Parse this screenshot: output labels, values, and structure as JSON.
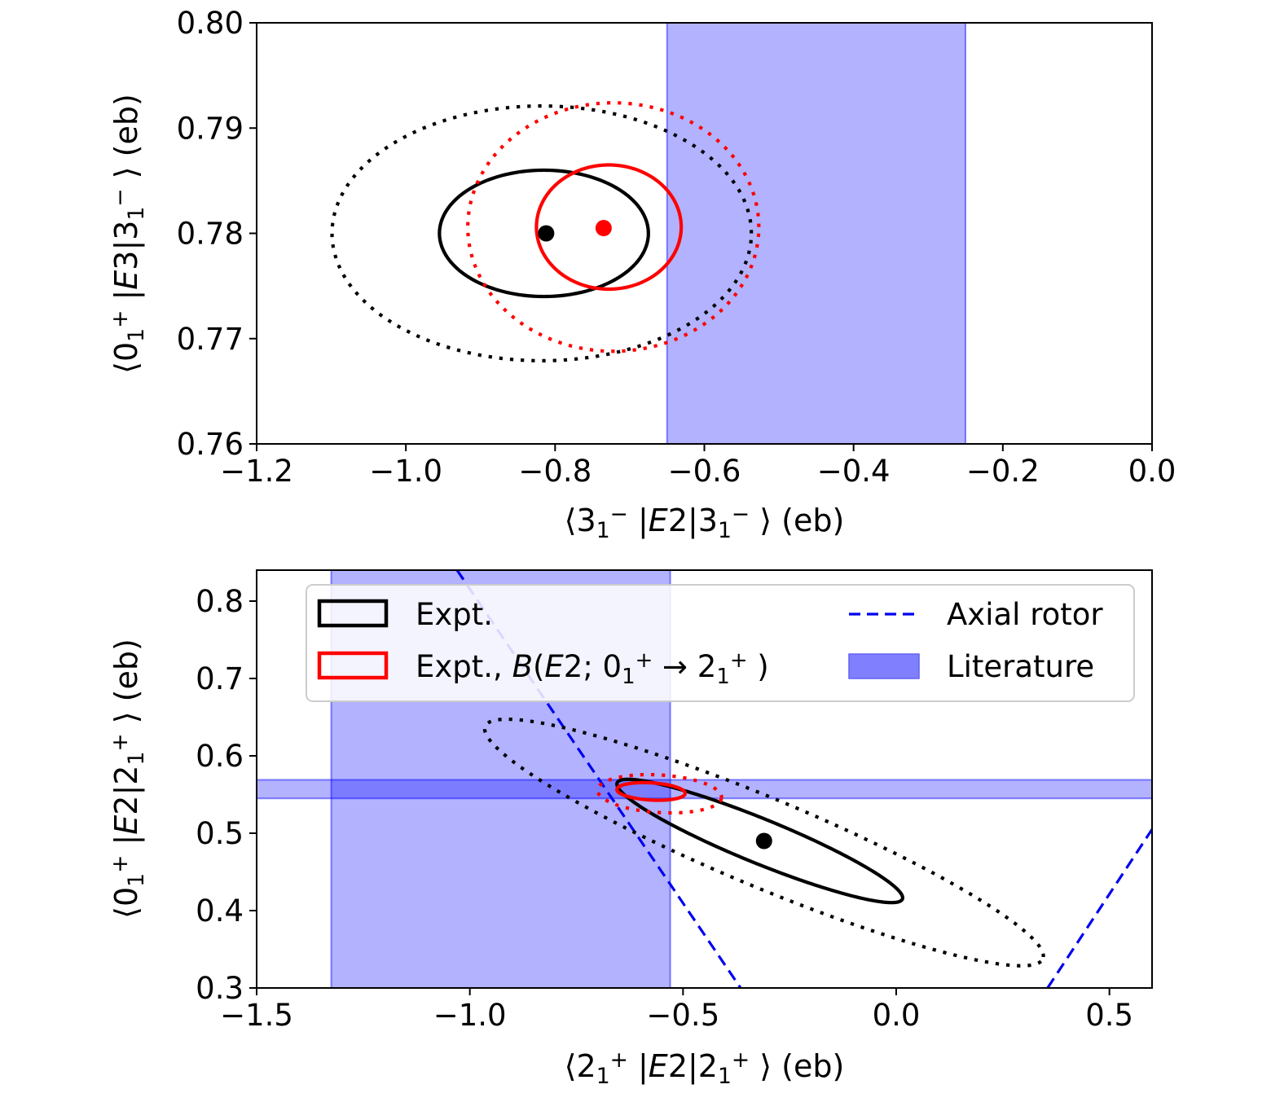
{
  "chart_data": [
    {
      "type": "scatter",
      "panel": "top",
      "xlabel": {
        "parts": [
          [
            "⟨3",
            "n"
          ],
          [
            "1",
            "sub"
          ],
          [
            "−",
            "sup"
          ],
          [
            " |",
            "n"
          ],
          [
            "E",
            "i"
          ],
          [
            "2|3",
            "n"
          ],
          [
            "1",
            "sub"
          ],
          [
            "−",
            "sup"
          ],
          [
            " ⟩ (eb)",
            "n"
          ]
        ]
      },
      "ylabel": {
        "parts": [
          [
            "⟨0",
            "n"
          ],
          [
            "1",
            "sub"
          ],
          [
            "+",
            "sup"
          ],
          [
            " |",
            "n"
          ],
          [
            "E",
            "i"
          ],
          [
            "3|3",
            "n"
          ],
          [
            "1",
            "sub"
          ],
          [
            "−",
            "sup"
          ],
          [
            " ⟩ (eb)",
            "n"
          ]
        ]
      },
      "xlim": [
        -1.2,
        0.0
      ],
      "ylim": [
        0.76,
        0.8
      ],
      "xticks": [
        -1.2,
        -1.0,
        -0.8,
        -0.6,
        -0.4,
        -0.2,
        0.0
      ],
      "xtick_labels": [
        "−1.2",
        "−1.0",
        "−0.8",
        "−0.6",
        "−0.4",
        "−0.2",
        "0.0"
      ],
      "yticks": [
        0.76,
        0.77,
        0.78,
        0.79,
        0.8
      ],
      "ytick_labels": [
        "0.76",
        "0.77",
        "0.78",
        "0.79",
        "0.80"
      ],
      "literature_bands": [
        {
          "axis": "x",
          "range": [
            -0.65,
            -0.25
          ]
        }
      ],
      "ellipses": [
        {
          "series": "Expt.",
          "style": "solid",
          "color": "#000000",
          "center": [
            -0.815,
            0.78
          ],
          "radii": [
            0.14,
            0.006
          ],
          "angle": 0
        },
        {
          "series": "Expt.",
          "style": "dotted",
          "color": "#000000",
          "center": [
            -0.818,
            0.78
          ],
          "radii": [
            0.281,
            0.0121
          ],
          "angle": 0
        },
        {
          "series": "Expt., B(E2; 0→2)",
          "style": "solid",
          "color": "#ff0000",
          "center": [
            -0.728,
            0.7806
          ],
          "radii": [
            0.097,
            0.0059
          ],
          "angle": 0
        },
        {
          "series": "Expt., B(E2; 0→2)",
          "style": "dotted",
          "color": "#ff0000",
          "center": [
            -0.722,
            0.7806
          ],
          "radii": [
            0.195,
            0.0118
          ],
          "angle": 0
        }
      ],
      "points": [
        {
          "series": "Expt.",
          "x": -0.812,
          "y": 0.78,
          "color": "#000000"
        },
        {
          "series": "Expt., B(E2; 0→2)",
          "x": -0.735,
          "y": 0.7805,
          "color": "#ff0000"
        }
      ]
    },
    {
      "type": "scatter",
      "panel": "bottom",
      "xlabel": {
        "parts": [
          [
            "⟨2",
            "n"
          ],
          [
            "1",
            "sub"
          ],
          [
            "+",
            "sup"
          ],
          [
            " |",
            "n"
          ],
          [
            "E",
            "i"
          ],
          [
            "2|2",
            "n"
          ],
          [
            "1",
            "sub"
          ],
          [
            "+",
            "sup"
          ],
          [
            " ⟩ (eb)",
            "n"
          ]
        ]
      },
      "ylabel": {
        "parts": [
          [
            "⟨0",
            "n"
          ],
          [
            "1",
            "sub"
          ],
          [
            "+",
            "sup"
          ],
          [
            " |",
            "n"
          ],
          [
            "E",
            "i"
          ],
          [
            "2|2",
            "n"
          ],
          [
            "1",
            "sub"
          ],
          [
            "+",
            "sup"
          ],
          [
            " ⟩ (eb)",
            "n"
          ]
        ]
      },
      "xlim": [
        -1.5,
        0.6
      ],
      "ylim": [
        0.3,
        0.84
      ],
      "xticks": [
        -1.5,
        -1.0,
        -0.5,
        0.0,
        0.5
      ],
      "xtick_labels": [
        "−1.5",
        "−1.0",
        "−0.5",
        "0.0",
        "0.5"
      ],
      "yticks": [
        0.3,
        0.4,
        0.5,
        0.6,
        0.7,
        0.8
      ],
      "ytick_labels": [
        "0.3",
        "0.4",
        "0.5",
        "0.6",
        "0.7",
        "0.8"
      ],
      "literature_bands": [
        {
          "axis": "x",
          "range": [
            -1.325,
            -0.53
          ]
        },
        {
          "axis": "y",
          "range": [
            0.545,
            0.569
          ]
        }
      ],
      "axial_rotor": [
        {
          "points": [
            [
              -1.03,
              0.84
            ],
            [
              -0.365,
              0.3
            ]
          ]
        },
        {
          "points": [
            [
              0.355,
              0.3
            ],
            [
              0.6,
              0.505
            ]
          ]
        }
      ],
      "ellipses": [
        {
          "series": "Expt.",
          "style": "solid",
          "color": "#000000",
          "center": [
            -0.32,
            0.49
          ],
          "axes_data": [
            [
              0.335,
              -0.074
            ],
            [
              0.0065,
              0.0295
            ]
          ]
        },
        {
          "series": "Expt.",
          "style": "dotted",
          "color": "#000000",
          "center": [
            -0.31,
            0.488
          ],
          "axes_data": [
            [
              0.655,
              -0.148
            ],
            [
              0.0135,
              0.059
            ]
          ]
        },
        {
          "series": "Expt., B(E2; 0→2)",
          "style": "solid",
          "color": "#ff0000",
          "center": [
            -0.575,
            0.554
          ],
          "axes_data": [
            [
              0.08,
              -0.003
            ],
            [
              0.004,
              0.011
            ]
          ]
        },
        {
          "series": "Expt., B(E2; 0→2)",
          "style": "dotted",
          "color": "#ff0000",
          "center": [
            -0.555,
            0.551
          ],
          "axes_data": [
            [
              0.145,
              -0.006
            ],
            [
              0.009,
              0.024
            ]
          ]
        }
      ],
      "points": [
        {
          "series": "Expt.",
          "x": -0.31,
          "y": 0.49,
          "color": "#000000"
        }
      ],
      "legend": {
        "placement": "upper-right",
        "entries": [
          {
            "label_parts": [
              [
                "Expt.",
                "n"
              ]
            ],
            "kind": "patch-outline",
            "color": "#000000"
          },
          {
            "label_parts": [
              [
                "Expt., ",
                "n"
              ],
              [
                "B",
                "i"
              ],
              [
                "(",
                "n"
              ],
              [
                "E",
                "i"
              ],
              [
                "2; 0",
                "n"
              ],
              [
                "1",
                "sub"
              ],
              [
                "+",
                "sup"
              ],
              [
                " → 2",
                "n"
              ],
              [
                "1",
                "sub"
              ],
              [
                "+",
                "sup"
              ],
              [
                " )",
                "n"
              ]
            ],
            "kind": "patch-outline",
            "color": "#ff0000"
          },
          {
            "label_parts": [
              [
                "Axial rotor",
                "n"
              ]
            ],
            "kind": "dashed-line",
            "color": "#0000ee"
          },
          {
            "label_parts": [
              [
                "Literature",
                "n"
              ]
            ],
            "kind": "patch-fill",
            "color": "#8080ff"
          }
        ]
      }
    }
  ],
  "colors": {
    "literature_fill": "#0000ff",
    "literature_alpha": 0.3,
    "rotor": "#0000ee",
    "expt": "#000000",
    "expt_constrained": "#ff0000"
  }
}
